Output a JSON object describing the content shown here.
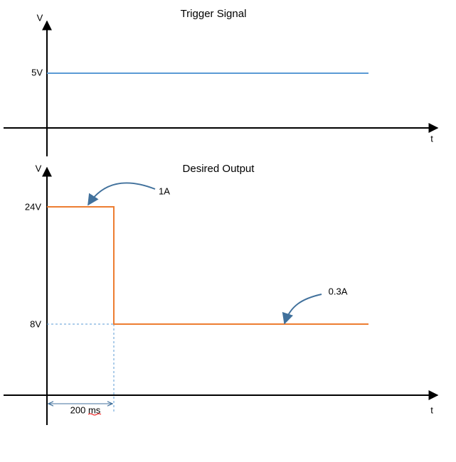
{
  "top_chart": {
    "title": "Trigger Signal",
    "y_axis_label": "V",
    "x_axis_label": "t",
    "level_label": "5V"
  },
  "bottom_chart": {
    "title": "Desired Output",
    "y_axis_label": "V",
    "x_axis_label": "t",
    "high_level_label": "24V",
    "low_level_label": "8V",
    "high_current_annotation": "1A",
    "low_current_annotation": "0.3A",
    "duration_label": "200 ms"
  }
}
